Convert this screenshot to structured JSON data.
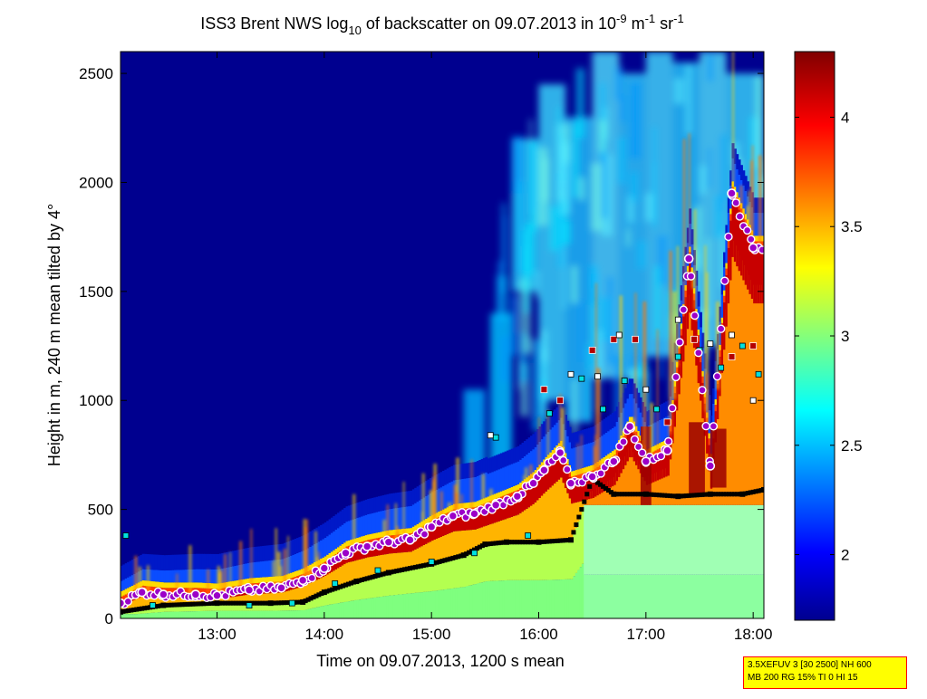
{
  "chart_data": {
    "type": "heatmap",
    "title": {
      "prefix": "ISS3 Brent NWS log",
      "prefix_sub": "10",
      "mid": " of backscatter on 09.07.2013 in 10",
      "mid_sup": "-9",
      "m_label": " m",
      "m_sup": "-1",
      "sr_label": " sr",
      "sr_sup": "-1"
    },
    "xlabel": "Time on 09.07.2013, 1200 s mean",
    "ylabel": "Height in m, 240 m mean tilted by 4°",
    "x_tick_labels": [
      "13:00",
      "14:00",
      "15:00",
      "16:00",
      "17:00",
      "18:00"
    ],
    "x_ticks_hours": [
      13,
      14,
      15,
      16,
      17,
      18
    ],
    "xlim_hours": [
      12.1,
      18.1
    ],
    "y_ticks": [
      0,
      500,
      1000,
      1500,
      2000,
      2500
    ],
    "ylim": [
      0,
      2600
    ],
    "colorbar": {
      "ticks": [
        2,
        2.5,
        3,
        3.5,
        4
      ],
      "range": [
        1.7,
        4.3
      ],
      "colormap": "jet"
    },
    "layer_top": {
      "name": "aerosol layer top (purple circles)",
      "x_hours": [
        12.1,
        12.3,
        12.5,
        12.8,
        13.0,
        13.3,
        13.6,
        13.8,
        14.0,
        14.2,
        14.4,
        14.6,
        14.8,
        15.0,
        15.2,
        15.4,
        15.6,
        15.8,
        15.95,
        16.05,
        16.2,
        16.3,
        16.5,
        16.7,
        16.85,
        17.0,
        17.2,
        17.4,
        17.6,
        17.8,
        18.0
      ],
      "heights": [
        70,
        120,
        110,
        110,
        105,
        130,
        140,
        175,
        230,
        300,
        330,
        350,
        360,
        420,
        470,
        480,
        520,
        560,
        620,
        680,
        760,
        620,
        650,
        720,
        880,
        720,
        770,
        1650,
        700,
        1950,
        1700
      ]
    },
    "mixing_height": {
      "name": "mixing layer height (black squares)",
      "x_hours": [
        12.1,
        12.5,
        13.0,
        13.5,
        13.8,
        14.0,
        14.3,
        14.6,
        15.0,
        15.3,
        15.5,
        15.7,
        16.0,
        16.3,
        16.5,
        16.7,
        17.0,
        17.3,
        17.6,
        17.9,
        18.1
      ],
      "heights": [
        30,
        60,
        70,
        70,
        75,
        120,
        170,
        210,
        250,
        290,
        340,
        350,
        350,
        360,
        640,
        570,
        570,
        560,
        570,
        570,
        590
      ]
    },
    "cyan_markers": {
      "name": "secondary layers (cyan squares)",
      "x_hours": [
        12.15,
        12.4,
        13.3,
        13.7,
        14.1,
        14.5,
        15.0,
        15.4,
        15.6,
        15.9,
        16.1,
        16.4,
        16.6,
        16.8,
        17.1,
        17.3,
        17.5,
        17.7,
        17.9,
        18.05
      ],
      "heights": [
        380,
        60,
        60,
        70,
        160,
        220,
        260,
        300,
        830,
        380,
        940,
        1100,
        960,
        1090,
        960,
        1200,
        1230,
        1150,
        1250,
        1120
      ]
    },
    "red_markers": {
      "name": "cloud base (dark red squares)",
      "x_hours": [
        16.05,
        16.2,
        16.5,
        16.7,
        16.9,
        17.2,
        17.45,
        17.8,
        18.0
      ],
      "heights": [
        1050,
        1000,
        1230,
        1280,
        1280,
        900,
        1280,
        1200,
        1250
      ]
    },
    "white_markers": {
      "name": "other layers (white squares)",
      "x_hours": [
        15.55,
        16.3,
        16.55,
        16.75,
        17.0,
        17.3,
        17.6,
        17.8,
        18.0
      ],
      "heights": [
        840,
        1120,
        1110,
        1300,
        1050,
        1370,
        1260,
        1300,
        1000
      ]
    }
  },
  "info_box": {
    "line1": "3.5XEFUV 3 [30 2500] NH 600",
    "line2": "MB 200 RG 15% TI 0 HI 15"
  },
  "colors": {
    "background_low": "#00008f",
    "layer_red": "#a50000",
    "layer_top_marker": "#9b00c8",
    "info_box_bg": "#ffff00",
    "info_box_border": "#ff0000"
  }
}
